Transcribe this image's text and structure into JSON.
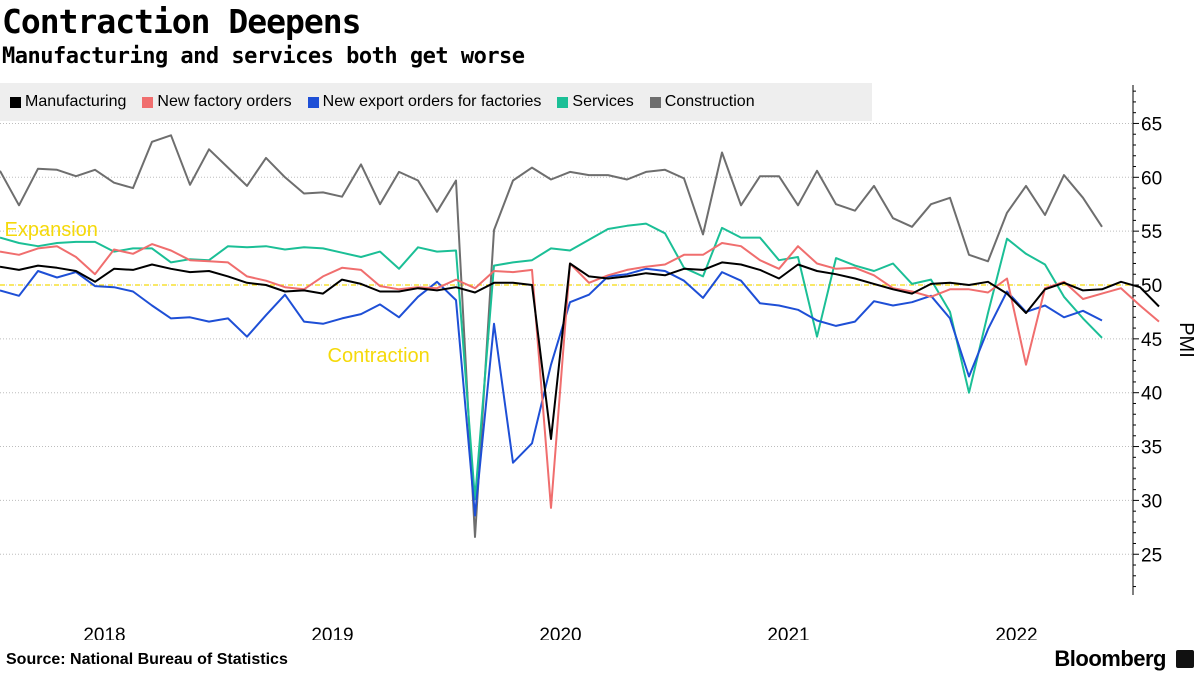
{
  "title": "Contraction Deepens",
  "subtitle": "Manufacturing and services both get worse",
  "source": "Source: National Bureau of Statistics",
  "brand": "Bloomberg",
  "chart_data": {
    "type": "line",
    "title": "Contraction Deepens",
    "subtitle": "Manufacturing and services both get worse",
    "ylabel": "PMI",
    "xlabel": "",
    "ylim": [
      21,
      69
    ],
    "yticks": [
      25,
      30,
      35,
      40,
      45,
      50,
      55,
      60,
      65
    ],
    "x_start": "2017-08",
    "x_end": "2022-06",
    "xtick_labels": [
      {
        "label": "2018",
        "pos": 5.5
      },
      {
        "label": "2019",
        "pos": 17.5
      },
      {
        "label": "2020",
        "pos": 29.5
      },
      {
        "label": "2021",
        "pos": 41.5
      },
      {
        "label": "2022",
        "pos": 53.5
      }
    ],
    "reference_line": 50,
    "annotations": [
      {
        "text": "Expansion",
        "x": -0.5,
        "y": 55.2
      },
      {
        "text": "Contraction",
        "x": 16.5,
        "y": 43.5
      }
    ],
    "series": [
      {
        "name": "Manufacturing",
        "color": "#000000",
        "values": [
          51.7,
          51.4,
          51.8,
          51.6,
          51.3,
          50.3,
          51.5,
          51.4,
          51.9,
          51.5,
          51.2,
          51.3,
          50.8,
          50.2,
          50.0,
          49.4,
          49.5,
          49.2,
          50.5,
          50.1,
          49.4,
          49.4,
          49.7,
          49.5,
          49.8,
          49.3,
          50.2,
          50.2,
          50.0,
          35.7,
          52.0,
          50.8,
          50.6,
          50.8,
          51.1,
          50.9,
          51.5,
          51.4,
          52.1,
          51.9,
          51.4,
          50.6,
          51.9,
          51.3,
          51.0,
          50.6,
          50.1,
          49.6,
          49.2,
          50.1,
          50.2,
          50.0,
          50.3,
          49.2,
          47.4,
          49.6,
          50.2,
          49.5,
          49.6,
          50.3,
          49.8,
          48.0
        ]
      },
      {
        "name": "New factory orders",
        "color": "#f06e6e",
        "values": [
          53.1,
          52.8,
          53.4,
          53.6,
          52.6,
          51.0,
          53.3,
          52.9,
          53.8,
          53.2,
          52.3,
          52.2,
          52.1,
          50.8,
          50.4,
          49.8,
          49.6,
          50.8,
          51.6,
          51.4,
          49.9,
          49.6,
          49.8,
          49.7,
          50.5,
          49.7,
          51.3,
          51.2,
          51.4,
          29.3,
          52.0,
          50.2,
          50.9,
          51.4,
          51.7,
          51.9,
          52.8,
          52.8,
          53.9,
          53.6,
          52.3,
          51.5,
          53.6,
          52.0,
          51.5,
          51.6,
          50.9,
          49.7,
          49.4,
          48.9,
          49.6,
          49.6,
          49.3,
          50.6,
          42.6,
          49.7,
          50.3,
          48.7,
          49.2,
          49.7,
          48.1,
          46.6
        ]
      },
      {
        "name": "New export orders for factories",
        "color": "#1e4fd6",
        "values": [
          49.5,
          49.0,
          51.3,
          50.7,
          51.2,
          49.9,
          49.8,
          49.4,
          48.1,
          46.9,
          47.0,
          46.6,
          46.9,
          45.2,
          47.2,
          49.1,
          46.6,
          46.4,
          46.9,
          47.3,
          48.2,
          47.0,
          48.9,
          50.3,
          48.6,
          28.6,
          46.4,
          33.5,
          35.3,
          42.6,
          48.4,
          49.1,
          50.8,
          51.0,
          51.5,
          51.3,
          50.4,
          48.8,
          51.2,
          50.4,
          48.3,
          48.1,
          47.7,
          46.7,
          46.2,
          46.6,
          48.5,
          48.1,
          48.4,
          49.0,
          46.9,
          41.5,
          45.9,
          49.4,
          47.5,
          48.1,
          47.0,
          47.6,
          46.7
        ]
      },
      {
        "name": "Services",
        "color": "#1bbf96",
        "values": [
          54.4,
          53.9,
          53.6,
          53.9,
          54.0,
          54.0,
          53.1,
          53.4,
          53.4,
          52.1,
          52.4,
          52.3,
          53.6,
          53.5,
          53.6,
          53.3,
          53.5,
          53.4,
          53.0,
          52.6,
          53.1,
          51.5,
          53.5,
          53.1,
          53.2,
          30.1,
          51.8,
          52.1,
          52.3,
          53.4,
          53.2,
          54.2,
          55.2,
          55.5,
          55.7,
          54.8,
          51.6,
          50.8,
          55.3,
          54.4,
          54.4,
          52.3,
          52.6,
          45.2,
          52.5,
          51.8,
          51.3,
          52.0,
          50.1,
          50.5,
          47.5,
          40.0,
          47.4,
          54.3,
          52.9,
          51.9,
          48.9,
          46.9,
          45.1
        ]
      },
      {
        "name": "Construction",
        "color": "#6e6e6e",
        "values": [
          60.6,
          57.4,
          60.8,
          60.7,
          60.1,
          60.7,
          59.5,
          59.0,
          63.3,
          63.9,
          59.3,
          62.6,
          60.9,
          59.2,
          61.8,
          60.0,
          58.5,
          58.6,
          58.2,
          61.2,
          57.5,
          60.5,
          59.7,
          56.8,
          59.7,
          26.6,
          55.1,
          59.7,
          60.9,
          59.8,
          60.5,
          60.2,
          60.2,
          59.8,
          60.5,
          60.7,
          59.9,
          54.7,
          62.3,
          57.4,
          60.1,
          60.1,
          57.4,
          60.6,
          57.5,
          56.9,
          59.2,
          56.2,
          55.4,
          57.5,
          58.1,
          52.8,
          52.2,
          56.7,
          59.2,
          56.5,
          60.2,
          58.1,
          55.4
        ]
      }
    ]
  }
}
